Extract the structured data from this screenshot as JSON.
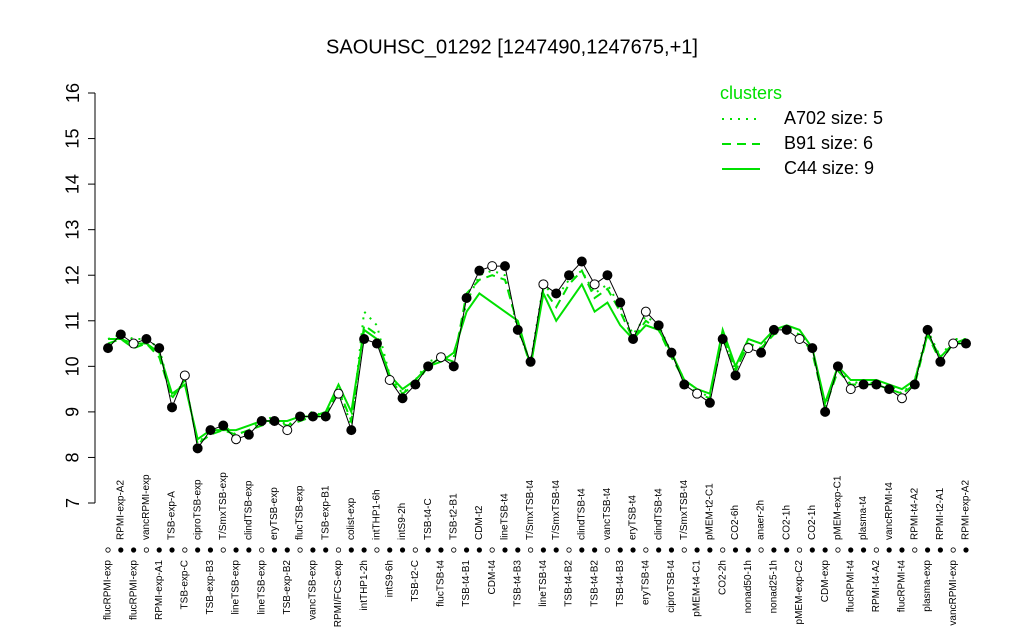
{
  "chart_data": {
    "type": "line",
    "title": "SAOUHSC_01292 [1247490,1247675,+1]",
    "legend_title": "clusters",
    "legend_position": "top-right",
    "color": "#000000",
    "categories": [
      "flucRPMI-exp",
      "RPMI-exp-A2",
      "flucRPMI-exp",
      "vancRPMI-exp",
      "RPMI-exp-A1",
      "TSB-exp-A",
      "TSB-exp-C",
      "ciproTSB-exp",
      "TSB-exp-B3",
      "T/SmxTSB-exp",
      "lineTSB-exp",
      "clindTSB-exp",
      "lineTSB-exp",
      "eryTSB-exp",
      "TSB-exp-B2",
      "flucTSB-exp",
      "vancTSB-exp",
      "TSB-exp-B1",
      "RPMI/FCS-exp",
      "colist-exp",
      "intTHP1-2h",
      "intTHP1-6h",
      "intS9-6h",
      "intS9-2h",
      "TSB-t2-C",
      "TSB-t4-C",
      "flucTSB-t4",
      "TSB-t2-B1",
      "TSB-t4-B1",
      "CDM-t2",
      "CDM-t4",
      "lineTSB-t4",
      "TSB-t4-B3",
      "T/SmxTSB-t4",
      "lineTSB-t4",
      "T/SmxTSB-t4",
      "TSB-t4-B2",
      "clindTSB-t4",
      "TSB-t4-B2",
      "vancTSB-t4",
      "TSB-t4-B3",
      "eryTSB-t4",
      "eryTSB-t4",
      "clindTSB-t4",
      "ciproTSB-t4",
      "T/SmxTSB-t4",
      "pMEM-t4-C1",
      "pMEM-t2-C1",
      "CO2-2h",
      "CO2-6h",
      "nonad50-1h",
      "anaer-2h",
      "nonad25-1h",
      "CO2-1h",
      "pMEM-exp-C2",
      "CO2-1h",
      "CDM-exp",
      "pMEM-exp-C1",
      "flucRPMI-t4",
      "plasma-t4",
      "RPMI-t4-A2",
      "vancRPMI-t4",
      "flucRPMI-t4",
      "RPMI-t4-A2",
      "plasma-exp",
      "RPMI-t2-A1",
      "vancRPMI-exp",
      "RPMI-exp-A2"
    ],
    "values": [
      10.4,
      10.7,
      10.5,
      10.6,
      10.4,
      9.1,
      9.8,
      8.2,
      8.6,
      8.7,
      8.4,
      8.5,
      8.8,
      8.8,
      8.6,
      8.9,
      8.9,
      8.9,
      9.4,
      8.6,
      10.6,
      10.5,
      9.7,
      9.3,
      9.6,
      10.0,
      10.2,
      10.0,
      11.5,
      12.1,
      12.2,
      12.2,
      10.8,
      10.1,
      11.8,
      11.6,
      12.0,
      12.3,
      11.8,
      12.0,
      11.4,
      10.6,
      11.2,
      10.9,
      10.3,
      9.6,
      9.4,
      9.2,
      10.6,
      9.8,
      10.4,
      10.3,
      10.8,
      10.8,
      10.6,
      10.4,
      9.0,
      10.0,
      9.5,
      9.6,
      9.6,
      9.5,
      9.3,
      9.6,
      10.8,
      10.1,
      10.5,
      10.5
    ],
    "series": [
      {
        "name": "A702 size: 5",
        "color": "#00e000",
        "dash": "dotted",
        "values": [
          10.6,
          10.7,
          10.6,
          10.6,
          10.4,
          9.3,
          9.7,
          8.3,
          8.6,
          8.7,
          8.5,
          8.6,
          8.8,
          8.9,
          8.7,
          8.9,
          9.0,
          8.9,
          9.5,
          8.7,
          11.2,
          10.9,
          9.8,
          9.4,
          9.7,
          10.1,
          10.2,
          10.2,
          11.4,
          12.0,
          12.1,
          12.0,
          10.8,
          10.1,
          11.8,
          11.5,
          11.9,
          12.1,
          11.6,
          11.8,
          11.3,
          10.7,
          11.1,
          10.9,
          10.3,
          9.7,
          9.5,
          9.3,
          10.6,
          9.9,
          10.5,
          10.4,
          10.8,
          10.8,
          10.7,
          10.4,
          9.1,
          10.0,
          9.6,
          9.7,
          9.6,
          9.6,
          9.4,
          9.7,
          10.8,
          10.2,
          10.6,
          10.6
        ]
      },
      {
        "name": "B91 size: 6",
        "color": "#00e000",
        "dash": "dashed",
        "values": [
          10.5,
          10.6,
          10.4,
          10.5,
          10.2,
          9.3,
          9.7,
          8.3,
          8.5,
          8.6,
          8.5,
          8.6,
          8.7,
          8.8,
          8.7,
          8.8,
          8.9,
          8.9,
          9.5,
          8.8,
          10.9,
          10.7,
          9.7,
          9.4,
          9.6,
          10.0,
          10.2,
          10.1,
          11.6,
          11.9,
          12.0,
          11.9,
          10.9,
          10.0,
          11.7,
          11.3,
          11.8,
          12.1,
          11.5,
          11.7,
          11.2,
          10.6,
          11.0,
          10.8,
          10.2,
          9.7,
          9.4,
          9.3,
          10.7,
          9.9,
          10.5,
          10.4,
          10.7,
          10.8,
          10.7,
          10.3,
          9.1,
          9.9,
          9.6,
          9.6,
          9.6,
          9.5,
          9.4,
          9.6,
          10.7,
          10.1,
          10.5,
          10.5
        ]
      },
      {
        "name": "C44 size: 9",
        "color": "#00e000",
        "dash": "solid",
        "values": [
          10.6,
          10.6,
          10.5,
          10.5,
          10.3,
          9.4,
          9.6,
          8.4,
          8.6,
          8.6,
          8.6,
          8.7,
          8.8,
          8.8,
          8.8,
          8.9,
          8.9,
          9.0,
          9.6,
          9.0,
          10.8,
          10.6,
          9.8,
          9.5,
          9.7,
          10.0,
          10.1,
          10.3,
          11.2,
          11.6,
          11.4,
          11.2,
          11.0,
          10.0,
          11.6,
          11.0,
          11.4,
          11.8,
          11.2,
          11.4,
          10.9,
          10.6,
          10.9,
          10.8,
          10.3,
          9.7,
          9.5,
          9.4,
          10.8,
          10.0,
          10.6,
          10.5,
          10.8,
          10.9,
          10.8,
          10.4,
          9.2,
          10.0,
          9.7,
          9.7,
          9.7,
          9.6,
          9.5,
          9.7,
          10.7,
          10.2,
          10.5,
          10.6
        ]
      }
    ],
    "ylim": [
      7,
      16
    ],
    "yticks": [
      7,
      8,
      9,
      10,
      11,
      12,
      13,
      14,
      15,
      16
    ]
  }
}
